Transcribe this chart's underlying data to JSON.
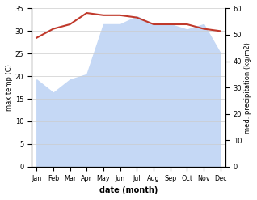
{
  "months": [
    "Jan",
    "Feb",
    "Mar",
    "Apr",
    "May",
    "Jun",
    "Jul",
    "Aug",
    "Sep",
    "Oct",
    "Nov",
    "Dec"
  ],
  "temp": [
    28.5,
    30.5,
    31.5,
    34.0,
    33.5,
    33.5,
    33.0,
    31.5,
    31.5,
    31.5,
    30.5,
    30.0
  ],
  "precip": [
    33,
    28,
    33,
    35,
    54,
    54,
    57,
    54,
    54,
    52,
    54,
    43
  ],
  "temp_color": "#c0392b",
  "precip_fill_color": "#c5d8f5",
  "ylim_left": [
    0,
    35
  ],
  "ylim_right": [
    0,
    60
  ],
  "ylabel_left": "max temp (C)",
  "ylabel_right": "med. precipitation (kg/m2)",
  "xlabel": "date (month)",
  "bg_color": "#ffffff",
  "left_ticks": [
    0,
    5,
    10,
    15,
    20,
    25,
    30,
    35
  ],
  "right_ticks": [
    0,
    10,
    20,
    30,
    40,
    50,
    60
  ]
}
